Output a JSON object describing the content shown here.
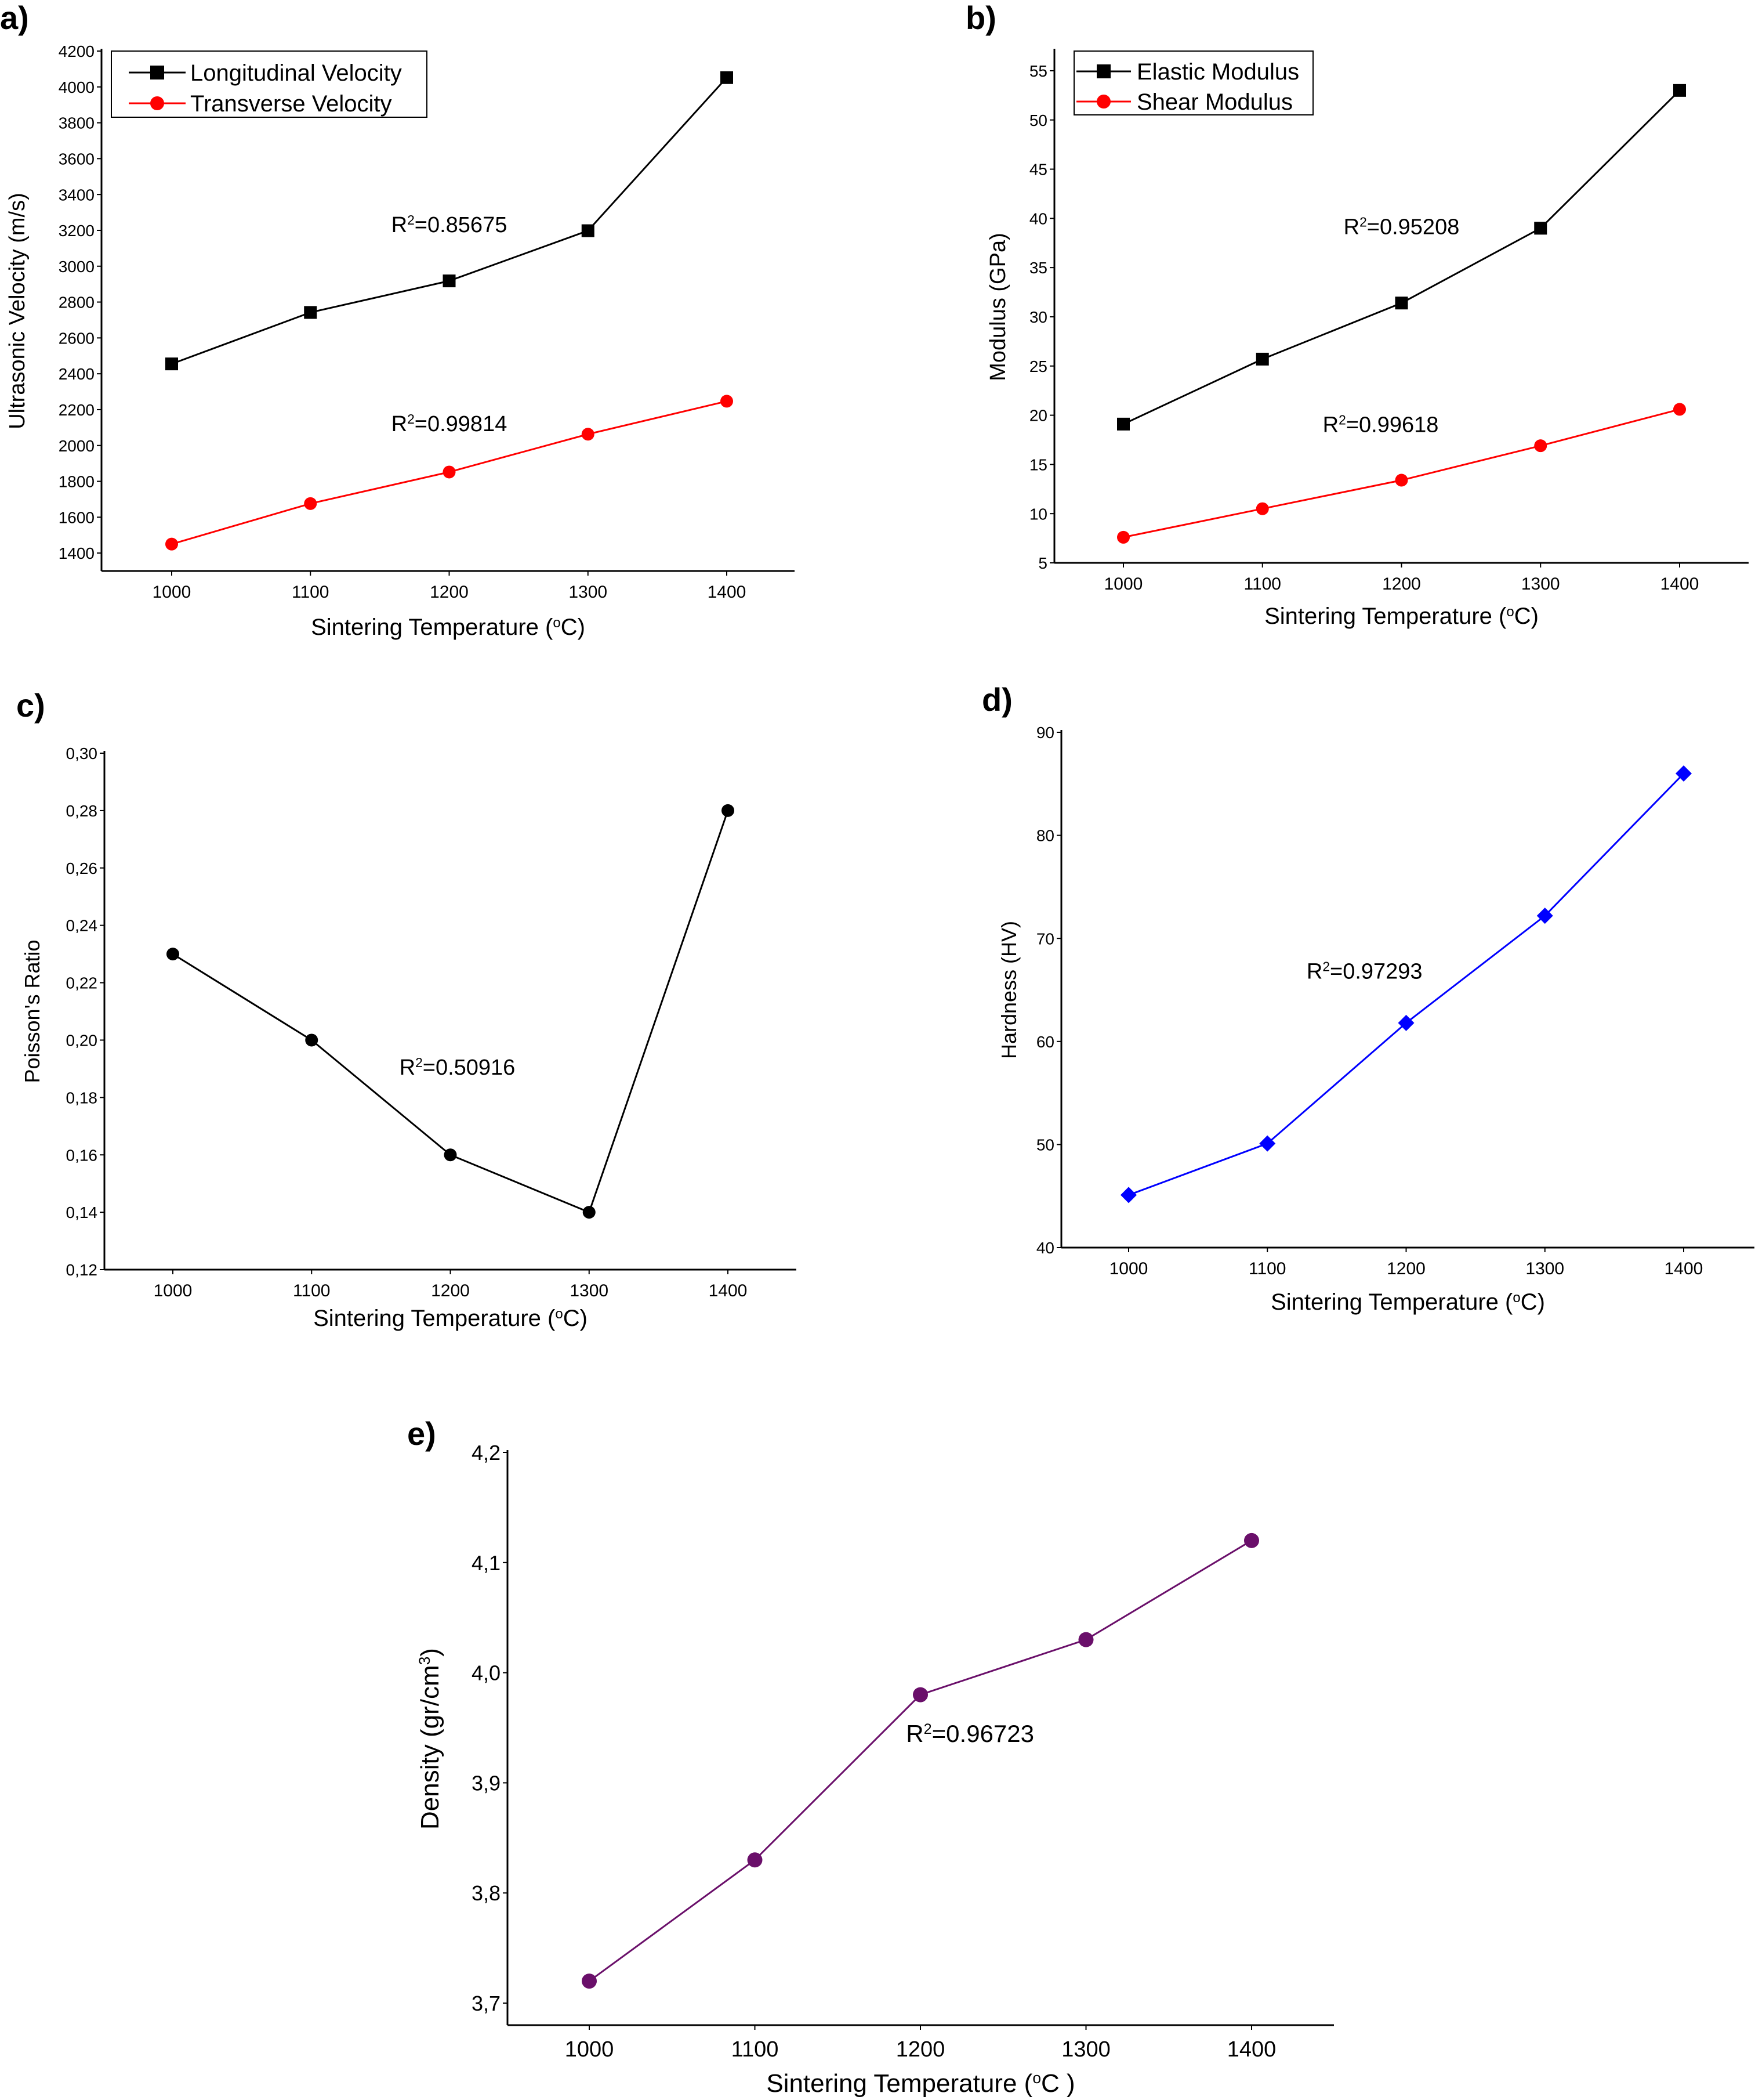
{
  "chart_data": [
    {
      "panel": "a)",
      "type": "line",
      "categories": [
        "1000",
        "1100",
        "1200",
        "1300",
        "1400"
      ],
      "x": [
        1000,
        1100,
        1200,
        1300,
        1400
      ],
      "xlabel": "Sintering Temperature (°C)",
      "ylabel": "Ultrasonic Velocity (m/s)",
      "ylim": [
        1300,
        4200
      ],
      "yticks": [
        1400,
        1600,
        1800,
        2000,
        2200,
        2400,
        2600,
        2800,
        3000,
        3200,
        3400,
        3600,
        3800,
        4000,
        4200
      ],
      "legend_position": "top-left",
      "grid": false,
      "series": [
        {
          "name": "Longitudinal Velocity",
          "color": "#000000",
          "marker": "square",
          "values": [
            2455,
            2742,
            2918,
            3198,
            4052
          ]
        },
        {
          "name": "Transverse Velocity",
          "color": "#ff0000",
          "marker": "circle",
          "values": [
            1450,
            1676,
            1852,
            2063,
            2247
          ]
        }
      ],
      "annotations": [
        {
          "text": "R2=0.85675",
          "x": 1200,
          "y": 3190
        },
        {
          "text": "R2=0.99814",
          "x": 1200,
          "y": 2080
        }
      ]
    },
    {
      "panel": "b)",
      "type": "line",
      "categories": [
        "1000",
        "1100",
        "1200",
        "1300",
        "1400"
      ],
      "x": [
        1000,
        1100,
        1200,
        1300,
        1400
      ],
      "xlabel": "Sintering Temperature (°C)",
      "ylabel": "Modulus (GPa)",
      "ylim": [
        5,
        57
      ],
      "yticks": [
        5,
        10,
        15,
        20,
        25,
        30,
        35,
        40,
        45,
        50,
        55
      ],
      "legend_position": "top-left",
      "grid": false,
      "series": [
        {
          "name": "Elastic Modulus",
          "color": "#000000",
          "marker": "square",
          "values": [
            19.1,
            25.7,
            31.4,
            39.0,
            53.0
          ]
        },
        {
          "name": "Shear Modulus",
          "color": "#ff0000",
          "marker": "circle",
          "values": [
            7.6,
            10.5,
            13.4,
            16.9,
            20.6
          ]
        }
      ],
      "annotations": [
        {
          "text": "R2=0.95208",
          "x": 1200,
          "y": 38.4
        },
        {
          "text": "R2=0.99618",
          "x": 1185,
          "y": 18.3
        }
      ]
    },
    {
      "panel": "c)",
      "type": "line",
      "categories": [
        "1000",
        "1100",
        "1200",
        "1300",
        "1400"
      ],
      "x": [
        1000,
        1100,
        1200,
        1300,
        1400
      ],
      "xlabel": "Sintering Temperature (°C)",
      "ylabel": "Poisson's Ratio",
      "ylim": [
        0.12,
        0.3
      ],
      "yticks": [
        "0,12",
        "0,14",
        "0,16",
        "0,18",
        "0,20",
        "0,22",
        "0,24",
        "0,26",
        "0,28",
        "0,30"
      ],
      "grid": false,
      "series": [
        {
          "color": "#000000",
          "marker": "circle",
          "values": [
            0.23,
            0.2,
            0.16,
            0.14,
            0.28
          ]
        }
      ],
      "annotations": [
        {
          "text": "R2=0.50916",
          "x": 1205,
          "y": 0.188
        }
      ]
    },
    {
      "panel": "d)",
      "type": "line",
      "categories": [
        "1000",
        "1100",
        "1200",
        "1300",
        "1400"
      ],
      "x": [
        1000,
        1100,
        1200,
        1300,
        1400
      ],
      "xlabel": "Sintering Temperature (°C)",
      "ylabel": "Hardness (HV)",
      "ylim": [
        40,
        90
      ],
      "yticks": [
        40,
        50,
        60,
        70,
        80,
        90
      ],
      "grid": false,
      "series": [
        {
          "color": "#0000ff",
          "marker": "diamond",
          "values": [
            45.1,
            50.1,
            61.8,
            72.2,
            86.0
          ]
        }
      ],
      "annotations": [
        {
          "text": "R2=0.97293",
          "x": 1170,
          "y": 66.1
        }
      ]
    },
    {
      "panel": "e)",
      "type": "line",
      "categories": [
        "1000",
        "1100",
        "1200",
        "1300",
        "1400"
      ],
      "x": [
        1000,
        1100,
        1200,
        1300,
        1400
      ],
      "xlabel": "Sintering Temperature (°C )",
      "ylabel": "Density (gr/cm3)",
      "ylim": [
        3.68,
        4.2
      ],
      "yticks": [
        "3,7",
        "3,8",
        "3,9",
        "4,0",
        "4,1",
        "4,2"
      ],
      "grid": false,
      "series": [
        {
          "color": "#6a0f6a",
          "marker": "circle",
          "values": [
            3.72,
            3.83,
            3.98,
            4.03,
            4.12
          ]
        }
      ],
      "annotations": [
        {
          "text": "R2=0.96723",
          "x": 1230,
          "y": 3.937
        }
      ]
    }
  ]
}
